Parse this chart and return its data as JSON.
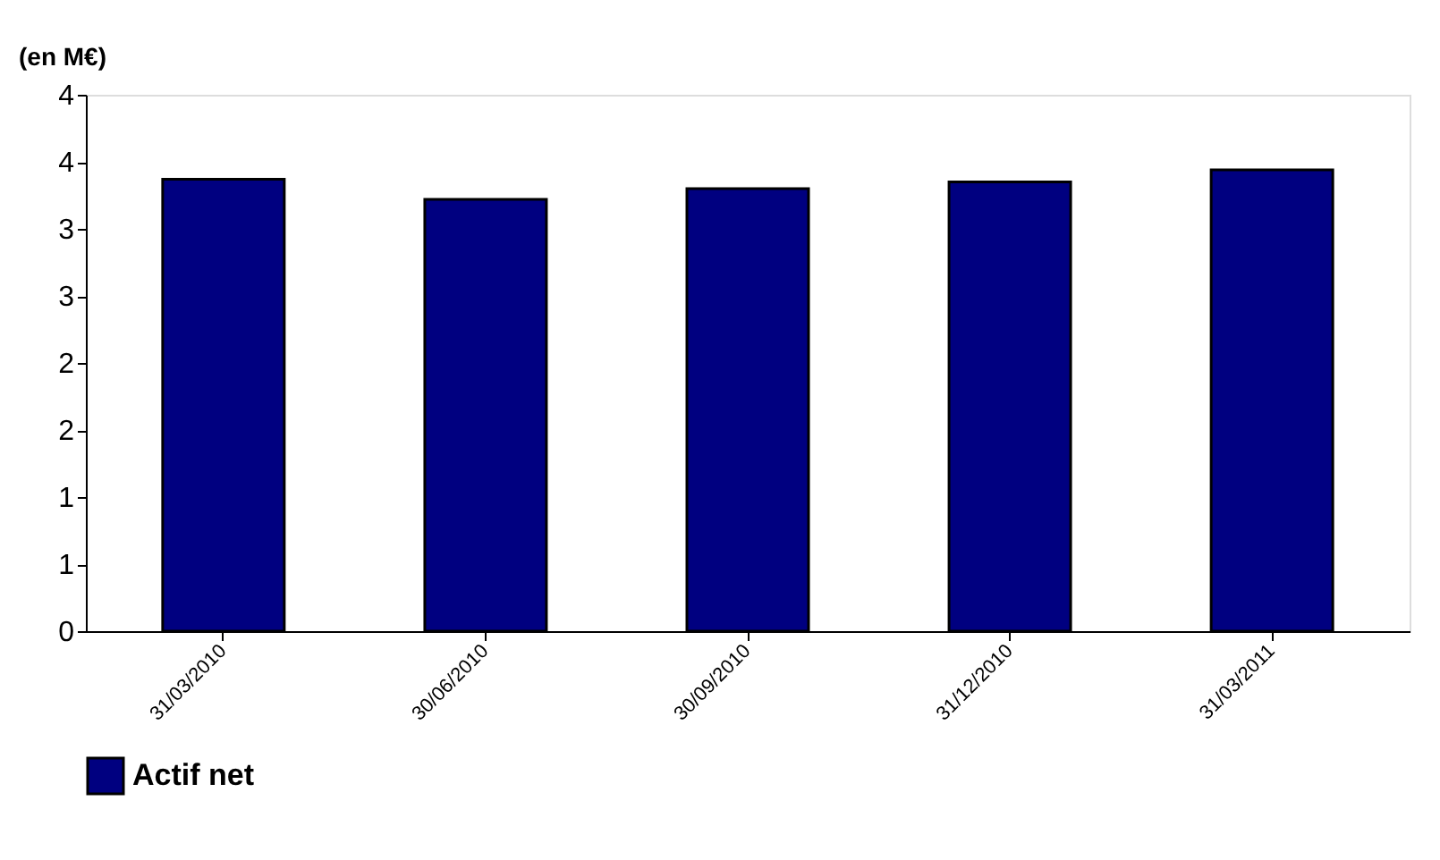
{
  "chart_data": {
    "type": "bar",
    "ylabel": "(en M€)",
    "categories": [
      "31/03/2010",
      "30/06/2010",
      "30/09/2010",
      "31/12/2010",
      "31/03/2011"
    ],
    "series": [
      {
        "name": "Actif net",
        "color": "#000080",
        "values": [
          3.37,
          3.22,
          3.3,
          3.35,
          3.44
        ]
      }
    ],
    "ylim": [
      0,
      4
    ],
    "yticks": [
      0,
      {
        "value": 0.5,
        "label": "1"
      },
      1,
      {
        "value": 1.5,
        "label": "2"
      },
      2,
      {
        "value": 2.5,
        "label": "3"
      },
      3,
      {
        "value": 3.5,
        "label": "4"
      },
      4
    ],
    "grid": false,
    "legend": "bottom"
  }
}
